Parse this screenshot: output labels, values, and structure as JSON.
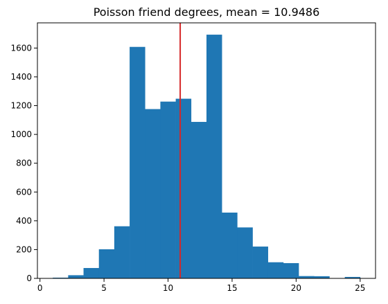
{
  "chart_data": {
    "type": "bar",
    "title": "Poisson friend degrees, mean = 10.9486",
    "xlabel": "",
    "ylabel": "",
    "xlim": [
      -0.2,
      26.2
    ],
    "ylim": [
      0,
      1775
    ],
    "x_ticks": [
      0,
      5,
      10,
      15,
      20,
      25
    ],
    "y_ticks": [
      0,
      200,
      400,
      600,
      800,
      1000,
      1200,
      1400,
      1600
    ],
    "bin_edges": [
      1.0,
      2.2,
      3.4,
      4.6,
      5.8,
      7.0,
      8.2,
      9.4,
      10.6,
      11.8,
      13.0,
      14.2,
      15.4,
      16.6,
      17.8,
      19.0,
      20.2,
      21.4,
      22.6,
      23.8,
      25.0
    ],
    "values": [
      5,
      22,
      72,
      202,
      362,
      1608,
      1176,
      1228,
      1248,
      1087,
      1693,
      457,
      354,
      221,
      112,
      106,
      16,
      15,
      0,
      10
    ],
    "mean_line": 10.9486,
    "bar_color": "#1f77b4",
    "mean_line_color": "#d62728",
    "grid": false,
    "legend": "none"
  }
}
